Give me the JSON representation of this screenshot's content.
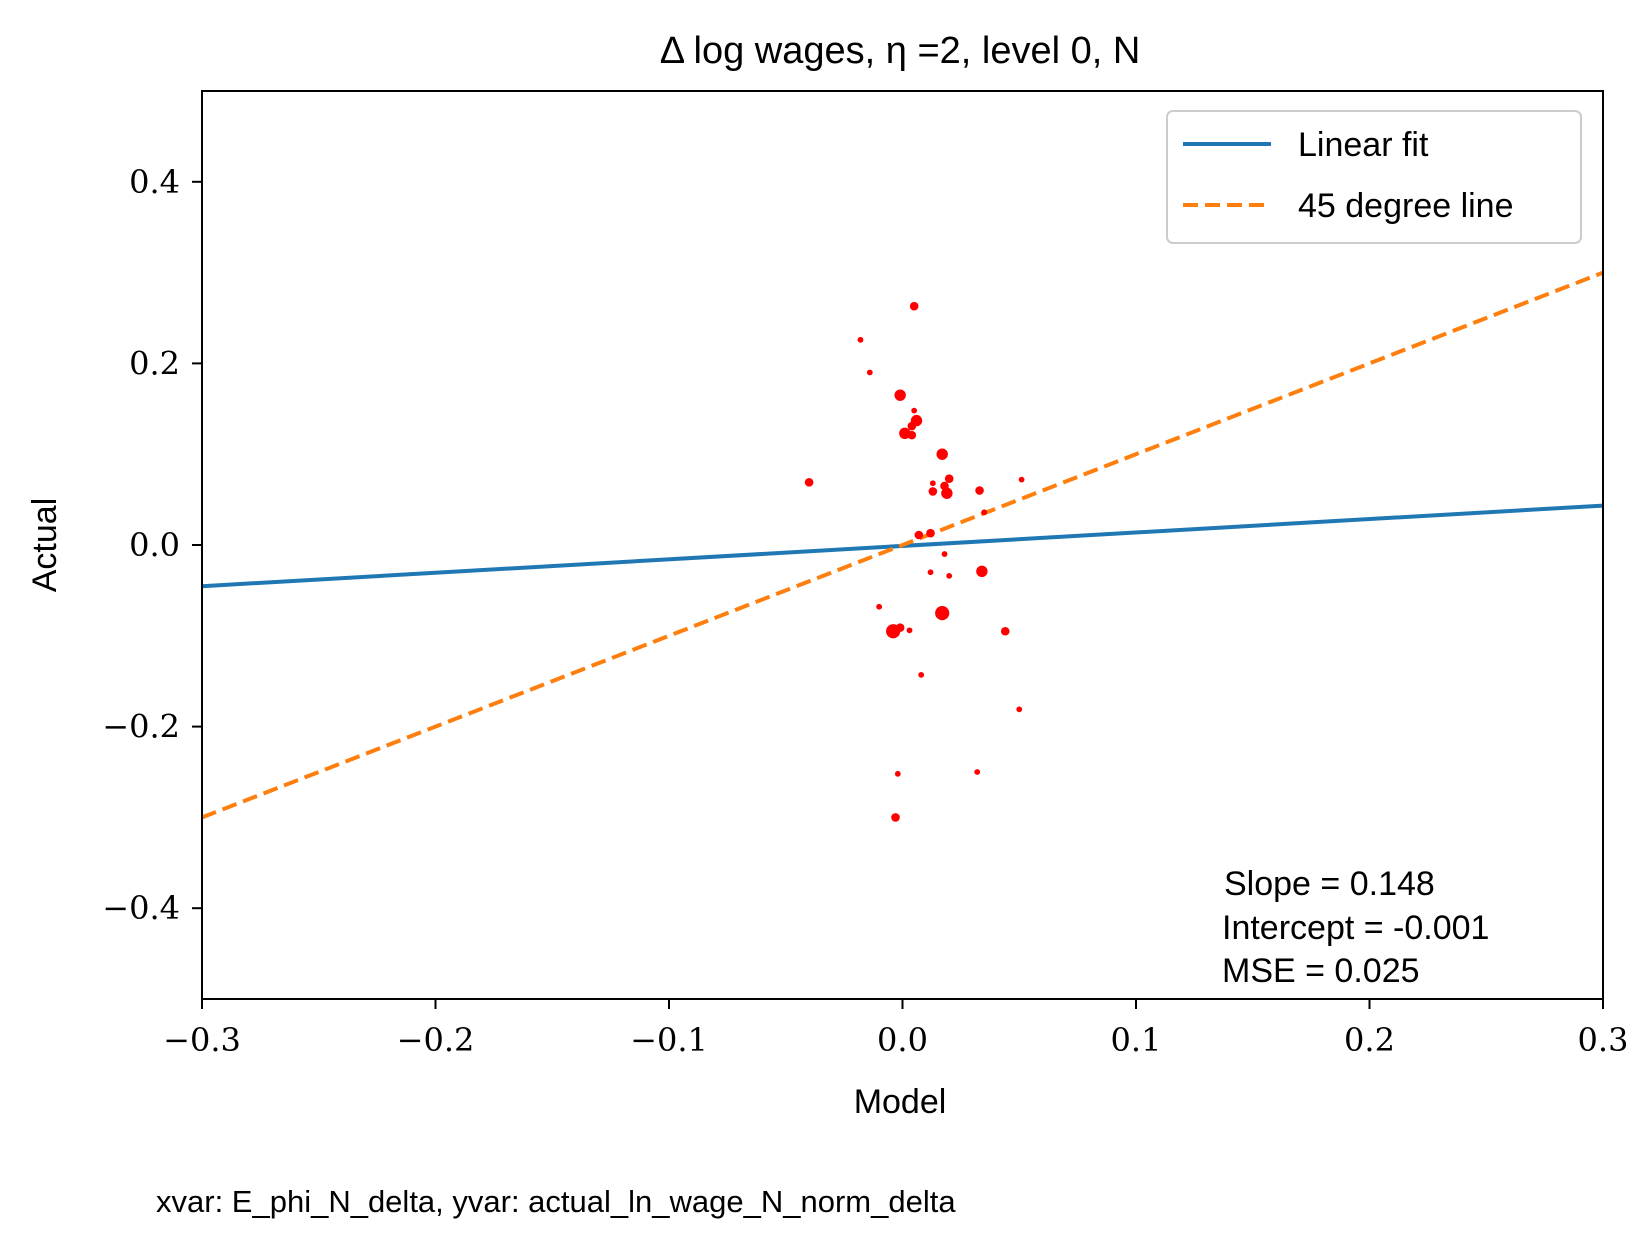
{
  "figure": {
    "title": "Δ log wages, η =2, level 0, N",
    "footer": "xvar: E_phi_N_delta, yvar: actual_ln_wage_N_norm_delta",
    "stats": {
      "slope": "Slope = 0.148",
      "intercept": "Intercept = -0.001",
      "mse": "MSE = 0.025"
    },
    "legend": {
      "fit_label": "Linear fit",
      "line45_label": "45 degree line"
    }
  },
  "colors": {
    "fit": "#1f77b4",
    "line45": "#ff7f0e",
    "points": "#ff0000",
    "axes": "#000000",
    "legend_border": "#cccccc"
  },
  "chart_data": {
    "type": "scatter",
    "title": "Δ log wages, η =2, level 0, N",
    "xlabel": "Model",
    "ylabel": "Actual",
    "xlim": [
      -0.3,
      0.3
    ],
    "ylim": [
      -0.5,
      0.5
    ],
    "xticks": [
      -0.3,
      -0.2,
      -0.1,
      0.0,
      0.1,
      0.2,
      0.3
    ],
    "xtick_labels": [
      "−0.3",
      "−0.2",
      "−0.1",
      "0.0",
      "0.1",
      "0.2",
      "0.3"
    ],
    "yticks": [
      -0.4,
      -0.2,
      0.0,
      0.2,
      0.4
    ],
    "ytick_labels": [
      "−0.4",
      "−0.2",
      "0.0",
      "0.2",
      "0.4"
    ],
    "grid": false,
    "legend_position": "upper right",
    "stats_position": "lower right",
    "lines": [
      {
        "name": "Linear fit",
        "style": "solid",
        "slope": 0.148,
        "intercept": -0.001
      },
      {
        "name": "45 degree line",
        "style": "dashed",
        "slope": 1.0,
        "intercept": 0.0
      }
    ],
    "points": [
      {
        "x": 0.005,
        "y": 0.263,
        "size": 2
      },
      {
        "x": -0.018,
        "y": 0.226,
        "size": 1
      },
      {
        "x": -0.014,
        "y": 0.19,
        "size": 1
      },
      {
        "x": -0.001,
        "y": 0.165,
        "size": 3
      },
      {
        "x": 0.005,
        "y": 0.148,
        "size": 1
      },
      {
        "x": 0.006,
        "y": 0.137,
        "size": 3
      },
      {
        "x": 0.004,
        "y": 0.131,
        "size": 2
      },
      {
        "x": 0.001,
        "y": 0.123,
        "size": 3
      },
      {
        "x": 0.004,
        "y": 0.121,
        "size": 2
      },
      {
        "x": 0.017,
        "y": 0.1,
        "size": 3
      },
      {
        "x": -0.04,
        "y": 0.069,
        "size": 2
      },
      {
        "x": 0.02,
        "y": 0.073,
        "size": 2
      },
      {
        "x": 0.013,
        "y": 0.068,
        "size": 1
      },
      {
        "x": 0.018,
        "y": 0.065,
        "size": 2
      },
      {
        "x": 0.033,
        "y": 0.06,
        "size": 2
      },
      {
        "x": 0.013,
        "y": 0.059,
        "size": 2
      },
      {
        "x": 0.019,
        "y": 0.057,
        "size": 3
      },
      {
        "x": 0.051,
        "y": 0.072,
        "size": 1
      },
      {
        "x": 0.035,
        "y": 0.036,
        "size": 1
      },
      {
        "x": 0.007,
        "y": 0.011,
        "size": 2
      },
      {
        "x": 0.012,
        "y": 0.013,
        "size": 2
      },
      {
        "x": 0.018,
        "y": -0.01,
        "size": 1
      },
      {
        "x": 0.012,
        "y": -0.03,
        "size": 1
      },
      {
        "x": 0.02,
        "y": -0.034,
        "size": 1
      },
      {
        "x": 0.034,
        "y": -0.029,
        "size": 3
      },
      {
        "x": -0.01,
        "y": -0.068,
        "size": 1
      },
      {
        "x": 0.017,
        "y": -0.075,
        "size": 4
      },
      {
        "x": -0.004,
        "y": -0.095,
        "size": 4
      },
      {
        "x": -0.001,
        "y": -0.091,
        "size": 2
      },
      {
        "x": 0.003,
        "y": -0.094,
        "size": 1
      },
      {
        "x": 0.044,
        "y": -0.095,
        "size": 2
      },
      {
        "x": 0.008,
        "y": -0.143,
        "size": 1
      },
      {
        "x": 0.05,
        "y": -0.181,
        "size": 1
      },
      {
        "x": -0.002,
        "y": -0.252,
        "size": 1
      },
      {
        "x": 0.032,
        "y": -0.25,
        "size": 1
      },
      {
        "x": -0.003,
        "y": -0.3,
        "size": 2
      }
    ]
  }
}
